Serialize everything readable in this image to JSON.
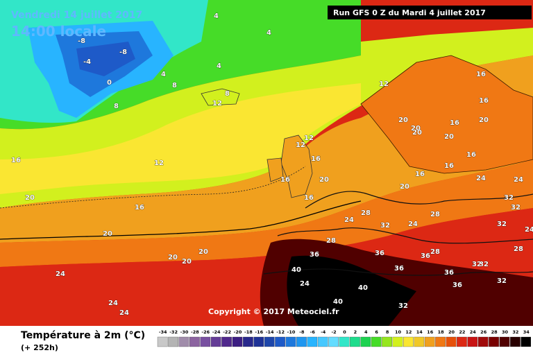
{
  "header": {
    "date": "Vendredi 14 juillet 2017",
    "time": "14:00 locale",
    "run": "Run GFS 0 Z du Mardi 4 juillet 2017"
  },
  "footer": {
    "copyright": "Copyright © 2017 Meteociel.fr"
  },
  "legend": {
    "title": "Température à 2m (°C)",
    "lead": "(+ 252h)",
    "ticks": [
      "-34",
      "-32",
      "-30",
      "-28",
      "-26",
      "-24",
      "-22",
      "-20",
      "-18",
      "-16",
      "-14",
      "-12",
      "-10",
      "-8",
      "-6",
      "-4",
      "-2",
      "0",
      "2",
      "4",
      "6",
      "8",
      "10",
      "12",
      "14",
      "16",
      "18",
      "20",
      "22",
      "24",
      "26",
      "28",
      "30",
      "32",
      "34"
    ],
    "colors": [
      "#c8c8c8",
      "#b4b4b4",
      "#a08caa",
      "#8c64a0",
      "#7850a0",
      "#643c96",
      "#50288c",
      "#3c1e82",
      "#28288c",
      "#1e3296",
      "#1e46aa",
      "#1e5ac8",
      "#1e78dc",
      "#1e96f0",
      "#28b4ff",
      "#46c8ff",
      "#64dcff",
      "#32e6c8",
      "#1edc8c",
      "#1ed250",
      "#46dc28",
      "#96e61e",
      "#d2f01e",
      "#fae632",
      "#f0c828",
      "#f0a01e",
      "#f07814",
      "#e6500a",
      "#dc2814",
      "#c81414",
      "#a00a0a",
      "#780000",
      "#500000",
      "#280000",
      "#000000"
    ]
  },
  "map_labels": [
    {
      "t": "4"
    },
    {
      "t": "-8"
    },
    {
      "t": "-8"
    },
    {
      "t": "-4"
    },
    {
      "t": "0"
    },
    {
      "t": "4"
    },
    {
      "t": "8"
    },
    {
      "t": "8"
    },
    {
      "t": "4"
    },
    {
      "t": "4"
    },
    {
      "t": "12"
    },
    {
      "t": "12"
    },
    {
      "t": "8"
    },
    {
      "t": "12"
    },
    {
      "t": "12"
    },
    {
      "t": "12"
    },
    {
      "t": "16"
    },
    {
      "t": "16"
    },
    {
      "t": "20"
    },
    {
      "t": "16"
    },
    {
      "t": "16"
    },
    {
      "t": "20"
    },
    {
      "t": "20"
    },
    {
      "t": "24"
    },
    {
      "t": "20"
    },
    {
      "t": "24"
    },
    {
      "t": "28"
    },
    {
      "t": "32"
    },
    {
      "t": "28"
    },
    {
      "t": "32"
    },
    {
      "t": "36"
    },
    {
      "t": "40"
    },
    {
      "t": "24"
    },
    {
      "t": "40"
    },
    {
      "t": "40"
    },
    {
      "t": "32"
    },
    {
      "t": "36"
    },
    {
      "t": "36"
    },
    {
      "t": "32"
    },
    {
      "t": "28"
    },
    {
      "t": "24"
    },
    {
      "t": "20"
    },
    {
      "t": "20"
    },
    {
      "t": "20"
    },
    {
      "t": "24"
    },
    {
      "t": "24"
    },
    {
      "t": "16"
    },
    {
      "t": "20"
    },
    {
      "t": "20"
    },
    {
      "t": "16"
    },
    {
      "t": "16"
    },
    {
      "t": "16"
    },
    {
      "t": "20"
    },
    {
      "t": "24"
    },
    {
      "t": "16"
    },
    {
      "t": "20"
    },
    {
      "t": "16"
    },
    {
      "t": "20"
    },
    {
      "t": "24"
    },
    {
      "t": "16"
    },
    {
      "t": "24"
    },
    {
      "t": "32"
    },
    {
      "t": "28"
    },
    {
      "t": "32"
    },
    {
      "t": "32"
    },
    {
      "t": "28"
    },
    {
      "t": "36"
    },
    {
      "t": "36"
    },
    {
      "t": "32"
    },
    {
      "t": "36"
    }
  ]
}
